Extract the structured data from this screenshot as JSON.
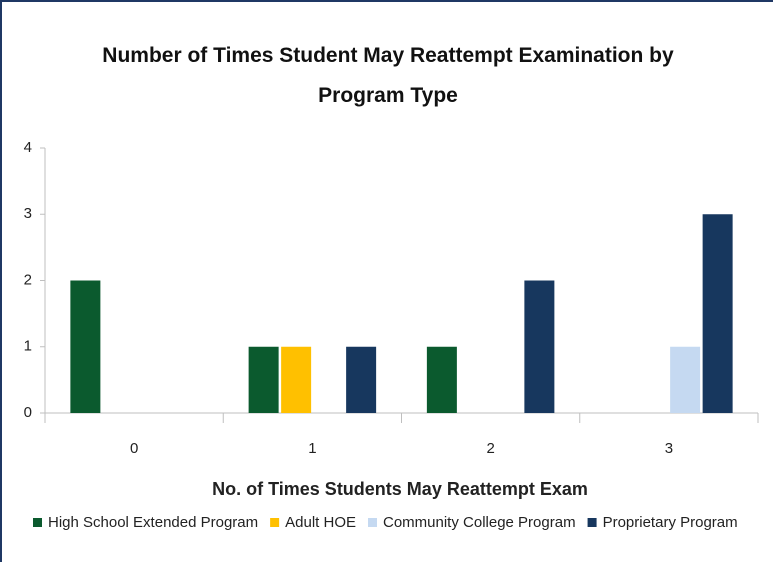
{
  "chart_data": {
    "type": "bar",
    "title": "Number of Times Student May Reattempt Examination by Program Type",
    "x_label": "No. of Times Students May Reattempt Exam",
    "categories": [
      "0",
      "1",
      "2",
      "3"
    ],
    "series": [
      {
        "name": "High School Extended Program",
        "color": "#0b5a2e",
        "values": [
          2,
          1,
          1,
          0
        ]
      },
      {
        "name": "Adult HOE",
        "color": "#ffc000",
        "values": [
          0,
          1,
          0,
          0
        ]
      },
      {
        "name": "Community College Program",
        "color": "#c5d9f1",
        "values": [
          0,
          0,
          0,
          1
        ]
      },
      {
        "name": "Proprietary Program",
        "color": "#17375e",
        "values": [
          0,
          1,
          2,
          3
        ]
      }
    ],
    "ylim": [
      0,
      4
    ],
    "yticks": [
      0,
      1,
      2,
      3,
      4
    ],
    "grid": false,
    "legend": "bottom"
  }
}
